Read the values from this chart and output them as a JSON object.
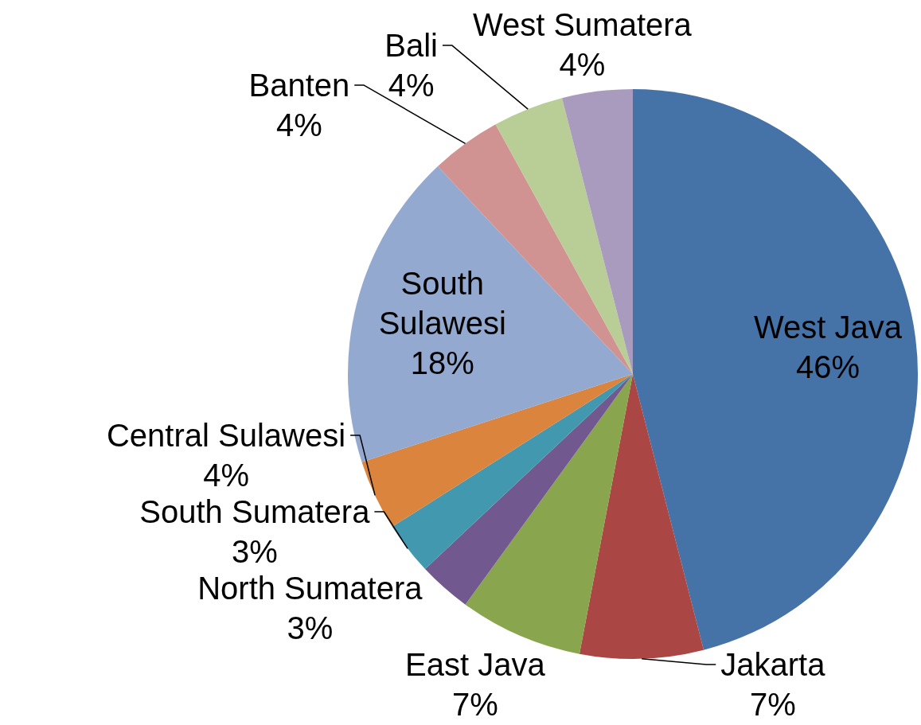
{
  "chart_data": {
    "type": "pie",
    "categories": [
      "West Java",
      "Jakarta",
      "East Java",
      "North Sumatera",
      "South Sumatera",
      "Central Sulawesi",
      "South Sulawesi",
      "Banten",
      "Bali",
      "West Sumatera"
    ],
    "values": [
      46,
      7,
      7,
      3,
      3,
      4,
      18,
      4,
      4,
      4
    ],
    "value_labels": [
      "46%",
      "7%",
      "7%",
      "3%",
      "3%",
      "4%",
      "18%",
      "4%",
      "4%",
      "4%"
    ],
    "colors": [
      "#4572a7",
      "#aa4643",
      "#89a54e",
      "#71588f",
      "#4198af",
      "#db843d",
      "#93a9cf",
      "#d19392",
      "#b9cd96",
      "#a99bbd"
    ]
  }
}
